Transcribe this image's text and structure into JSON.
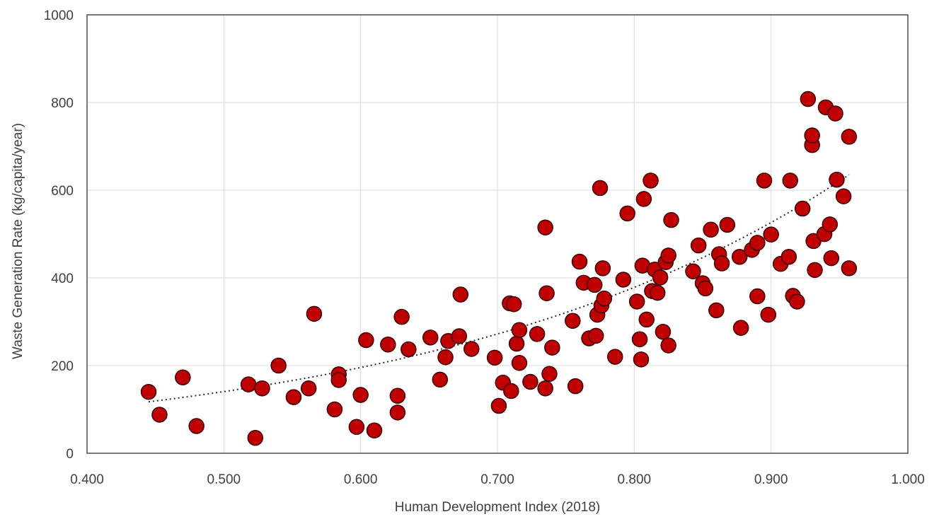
{
  "chart_data": {
    "type": "scatter",
    "title": "",
    "xlabel": "Human Development Index (2018)",
    "ylabel": "Waste Generation Rate (kg/capita/year)",
    "xlim": [
      0.4,
      1.0
    ],
    "ylim": [
      0,
      1000
    ],
    "x_ticks": [
      "0.400",
      "0.500",
      "0.600",
      "0.700",
      "0.800",
      "0.900",
      "1.000"
    ],
    "y_ticks": [
      "0",
      "200",
      "400",
      "600",
      "800",
      "1000"
    ],
    "x_tick_values": [
      0.4,
      0.5,
      0.6,
      0.7,
      0.8,
      0.9,
      1.0
    ],
    "y_tick_values": [
      0,
      200,
      400,
      600,
      800,
      1000
    ],
    "grid": true,
    "legend": "none",
    "marker_color": "#c00000",
    "marker_edge_color": "#3a0000",
    "trendline": {
      "type": "exponential",
      "a": 27,
      "b": 3.3,
      "x_range": [
        0.445,
        0.957
      ],
      "style": "dotted",
      "color": "#2b2b2b"
    },
    "series": [
      {
        "points": [
          [
            0.445,
            140
          ],
          [
            0.453,
            88
          ],
          [
            0.47,
            173
          ],
          [
            0.48,
            62
          ],
          [
            0.518,
            157
          ],
          [
            0.523,
            35
          ],
          [
            0.528,
            148
          ],
          [
            0.54,
            200
          ],
          [
            0.551,
            128
          ],
          [
            0.562,
            148
          ],
          [
            0.566,
            318
          ],
          [
            0.581,
            100
          ],
          [
            0.584,
            180
          ],
          [
            0.584,
            167
          ],
          [
            0.597,
            60
          ],
          [
            0.6,
            133
          ],
          [
            0.604,
            258
          ],
          [
            0.61,
            52
          ],
          [
            0.62,
            248
          ],
          [
            0.627,
            131
          ],
          [
            0.627,
            93
          ],
          [
            0.63,
            311
          ],
          [
            0.635,
            237
          ],
          [
            0.651,
            264
          ],
          [
            0.658,
            168
          ],
          [
            0.662,
            219
          ],
          [
            0.664,
            256
          ],
          [
            0.672,
            267
          ],
          [
            0.673,
            362
          ],
          [
            0.681,
            238
          ],
          [
            0.698,
            218
          ],
          [
            0.701,
            108
          ],
          [
            0.704,
            161
          ],
          [
            0.709,
            342
          ],
          [
            0.71,
            142
          ],
          [
            0.712,
            340
          ],
          [
            0.714,
            250
          ],
          [
            0.716,
            281
          ],
          [
            0.716,
            206
          ],
          [
            0.724,
            163
          ],
          [
            0.729,
            272
          ],
          [
            0.735,
            148
          ],
          [
            0.735,
            515
          ],
          [
            0.736,
            365
          ],
          [
            0.738,
            181
          ],
          [
            0.74,
            241
          ],
          [
            0.755,
            302
          ],
          [
            0.757,
            153
          ],
          [
            0.76,
            437
          ],
          [
            0.763,
            389
          ],
          [
            0.767,
            262
          ],
          [
            0.771,
            384
          ],
          [
            0.772,
            268
          ],
          [
            0.773,
            316
          ],
          [
            0.775,
            605
          ],
          [
            0.776,
            337
          ],
          [
            0.777,
            422
          ],
          [
            0.778,
            353
          ],
          [
            0.786,
            220
          ],
          [
            0.792,
            396
          ],
          [
            0.795,
            547
          ],
          [
            0.802,
            346
          ],
          [
            0.804,
            260
          ],
          [
            0.805,
            214
          ],
          [
            0.806,
            428
          ],
          [
            0.807,
            580
          ],
          [
            0.809,
            305
          ],
          [
            0.812,
            622
          ],
          [
            0.813,
            370
          ],
          [
            0.815,
            419
          ],
          [
            0.817,
            366
          ],
          [
            0.819,
            401
          ],
          [
            0.821,
            277
          ],
          [
            0.823,
            436
          ],
          [
            0.825,
            451
          ],
          [
            0.825,
            246
          ],
          [
            0.827,
            532
          ],
          [
            0.843,
            415
          ],
          [
            0.847,
            474
          ],
          [
            0.85,
            388
          ],
          [
            0.852,
            376
          ],
          [
            0.856,
            510
          ],
          [
            0.86,
            326
          ],
          [
            0.862,
            454
          ],
          [
            0.864,
            433
          ],
          [
            0.868,
            521
          ],
          [
            0.877,
            448
          ],
          [
            0.878,
            286
          ],
          [
            0.886,
            464
          ],
          [
            0.89,
            358
          ],
          [
            0.89,
            480
          ],
          [
            0.895,
            622
          ],
          [
            0.898,
            316
          ],
          [
            0.9,
            499
          ],
          [
            0.907,
            432
          ],
          [
            0.913,
            448
          ],
          [
            0.914,
            622
          ],
          [
            0.916,
            359
          ],
          [
            0.919,
            346
          ],
          [
            0.923,
            558
          ],
          [
            0.927,
            808
          ],
          [
            0.93,
            703
          ],
          [
            0.93,
            725
          ],
          [
            0.931,
            484
          ],
          [
            0.932,
            418
          ],
          [
            0.939,
            500
          ],
          [
            0.94,
            789
          ],
          [
            0.943,
            522
          ],
          [
            0.944,
            445
          ],
          [
            0.947,
            775
          ],
          [
            0.948,
            624
          ],
          [
            0.953,
            586
          ],
          [
            0.957,
            722
          ],
          [
            0.957,
            422
          ]
        ]
      }
    ]
  }
}
